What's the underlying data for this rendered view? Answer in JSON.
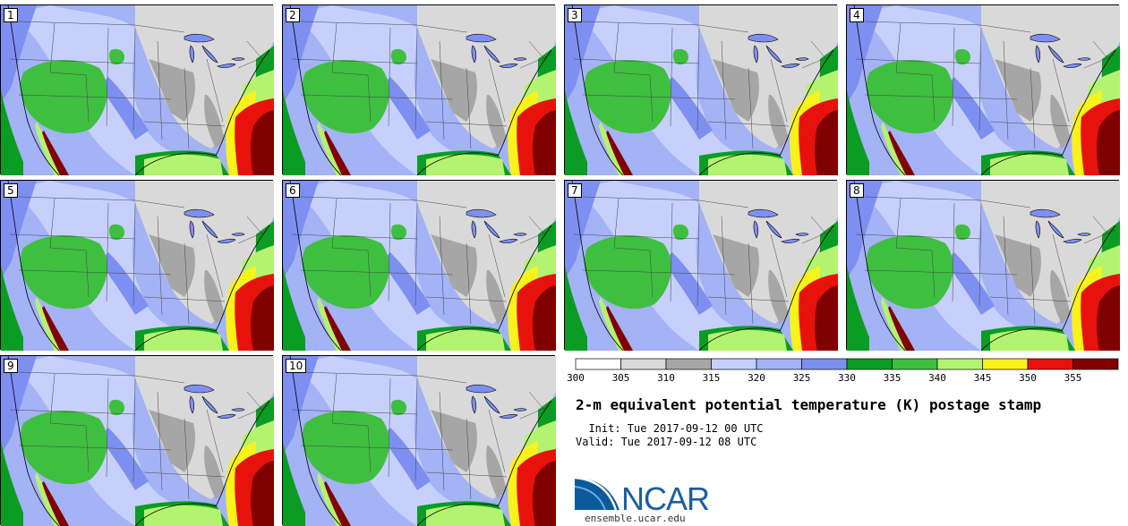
{
  "panels": [
    {
      "label": "1"
    },
    {
      "label": "2"
    },
    {
      "label": "3"
    },
    {
      "label": "4"
    },
    {
      "label": "5"
    },
    {
      "label": "6"
    },
    {
      "label": "7"
    },
    {
      "label": "8"
    },
    {
      "label": "9"
    },
    {
      "label": "10"
    }
  ],
  "legend": {
    "ticks": [
      "300",
      "305",
      "310",
      "315",
      "320",
      "325",
      "330",
      "335",
      "340",
      "345",
      "350",
      "355"
    ],
    "colors": [
      "#ffffff",
      "#d9d9d9",
      "#a6a6a6",
      "#c6d0fb",
      "#a4b2f6",
      "#7d8ff0",
      "#0b9c24",
      "#3fbf3f",
      "#b3f36f",
      "#f9f21b",
      "#e8120c",
      "#800000"
    ]
  },
  "title": "2-m equivalent potential temperature (K) postage stamp",
  "init_line": "  Init: Tue 2017-09-12 00 UTC",
  "valid_line": "Valid: Tue 2017-09-12 08 UTC",
  "logo_text": "NCAR",
  "url": "ensemble.ucar.edu"
}
